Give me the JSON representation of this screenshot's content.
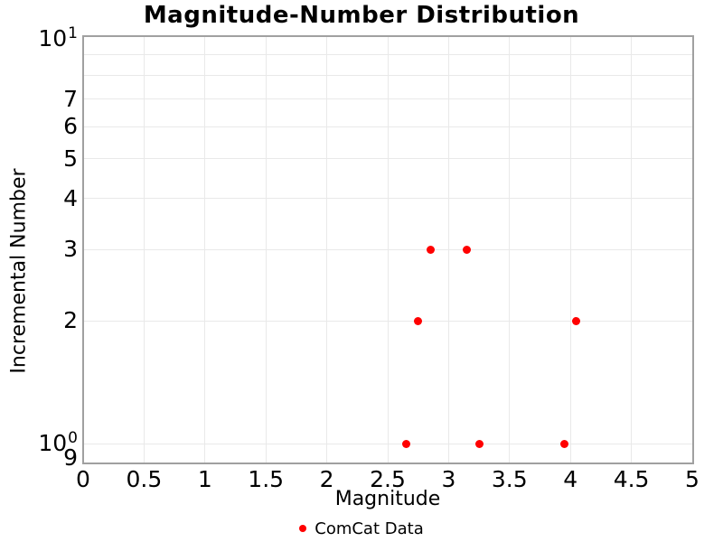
{
  "chart_data": {
    "type": "scatter",
    "title": "Magnitude-Number Distribution",
    "xlabel": "Magnitude",
    "ylabel": "Incremental Number",
    "xlim": [
      0,
      5
    ],
    "ylim": [
      0.9,
      10
    ],
    "yscale": "log",
    "grid": true,
    "x_ticks": [
      {
        "v": 0,
        "label": "0"
      },
      {
        "v": 0.5,
        "label": "0.5"
      },
      {
        "v": 1,
        "label": "1"
      },
      {
        "v": 1.5,
        "label": "1.5"
      },
      {
        "v": 2,
        "label": "2"
      },
      {
        "v": 2.5,
        "label": "2.5"
      },
      {
        "v": 3,
        "label": "3"
      },
      {
        "v": 3.5,
        "label": "3.5"
      },
      {
        "v": 4,
        "label": "4"
      },
      {
        "v": 4.5,
        "label": "4.5"
      },
      {
        "v": 5,
        "label": "5"
      }
    ],
    "y_ticks": [
      {
        "v": 10,
        "label": "10",
        "sup": "1",
        "dy": 3
      },
      {
        "v": 7,
        "label": "7"
      },
      {
        "v": 6,
        "label": "6"
      },
      {
        "v": 5,
        "label": "5"
      },
      {
        "v": 4,
        "label": "4"
      },
      {
        "v": 3,
        "label": "3"
      },
      {
        "v": 2,
        "label": "2"
      },
      {
        "v": 1,
        "label": "10",
        "sup": "0"
      },
      {
        "v": 0.9,
        "label": "9",
        "dy": -5
      }
    ],
    "x_gridlines": [
      0.5,
      1,
      1.5,
      2,
      2.5,
      3,
      3.5,
      4,
      4.5
    ],
    "y_gridlines": [
      1,
      2,
      3,
      4,
      5,
      6,
      7,
      8,
      9
    ],
    "series": [
      {
        "name": "ComCat Data",
        "color": "#ff0000",
        "marker": "circle",
        "marker_size": 9,
        "points": [
          {
            "x": 2.65,
            "y": 1
          },
          {
            "x": 2.75,
            "y": 2
          },
          {
            "x": 2.85,
            "y": 3
          },
          {
            "x": 3.15,
            "y": 3
          },
          {
            "x": 3.25,
            "y": 1
          },
          {
            "x": 3.95,
            "y": 1
          },
          {
            "x": 4.05,
            "y": 2
          }
        ]
      }
    ],
    "legend": {
      "position": "bottom-center",
      "entries": [
        {
          "label": "ComCat Data",
          "color": "#ff0000",
          "marker": "circle"
        }
      ]
    },
    "colors": {
      "grid": "#e9e9e9",
      "axis_border": "#a0a0a0",
      "text": "#000000",
      "background": "#ffffff"
    }
  }
}
